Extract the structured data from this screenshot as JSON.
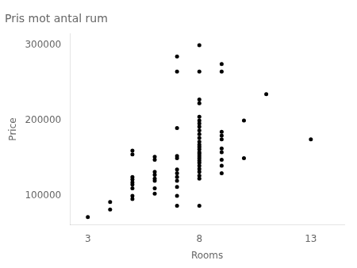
{
  "chart_data": {
    "type": "scatter",
    "title": "Pris mot antal rum",
    "xlabel": "Rooms",
    "ylabel": "Price",
    "x": [
      3,
      4,
      4,
      5,
      5,
      5,
      5,
      5,
      5,
      5,
      5,
      5,
      6,
      6,
      6,
      6,
      6,
      6,
      6,
      6,
      7,
      7,
      7,
      7,
      7,
      7,
      7,
      7,
      7,
      7,
      8,
      8,
      8,
      8,
      8,
      8,
      8,
      8,
      8,
      8,
      8,
      8,
      8,
      8,
      8,
      8,
      8,
      8,
      8,
      8,
      8,
      8,
      8,
      8,
      8,
      9,
      9,
      9,
      9,
      9,
      9,
      9,
      9,
      10,
      10,
      11,
      13,
      7,
      7,
      8,
      8,
      9,
      9
    ],
    "values": [
      72000,
      82000,
      92000,
      96000,
      100000,
      110000,
      115000,
      118000,
      122000,
      125000,
      155000,
      160000,
      103000,
      110000,
      120000,
      123000,
      128000,
      132000,
      148000,
      152000,
      87000,
      100000,
      112000,
      120000,
      125000,
      130000,
      135000,
      150000,
      153000,
      190000,
      87000,
      123000,
      127000,
      132000,
      136000,
      140000,
      144000,
      147000,
      150000,
      153000,
      156000,
      158000,
      162000,
      165000,
      168000,
      172000,
      177000,
      182000,
      187000,
      192000,
      196000,
      200000,
      205000,
      223000,
      228000,
      130000,
      140000,
      148000,
      158000,
      163000,
      175000,
      180000,
      185000,
      150000,
      200000,
      235000,
      175000,
      265000,
      285000,
      265000,
      300000,
      265000,
      275000
    ],
    "color": "#000000",
    "xlim": [
      2.2,
      14.5
    ],
    "ylim": [
      62000,
      315000
    ],
    "xticks": [
      3,
      8,
      13
    ],
    "yticks": [
      100000,
      200000,
      300000
    ],
    "grid": false
  }
}
